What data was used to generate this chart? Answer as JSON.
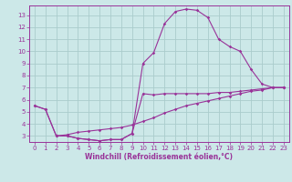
{
  "title": "",
  "xlabel": "Windchill (Refroidissement éolien,°C)",
  "ylabel": "",
  "bg_color": "#cce8e8",
  "grid_color": "#aacccc",
  "line_color": "#993399",
  "xlim": [
    -0.5,
    23.5
  ],
  "ylim": [
    2.5,
    13.8
  ],
  "yticks": [
    3,
    4,
    5,
    6,
    7,
    8,
    9,
    10,
    11,
    12,
    13
  ],
  "xticks": [
    0,
    1,
    2,
    3,
    4,
    5,
    6,
    7,
    8,
    9,
    10,
    11,
    12,
    13,
    14,
    15,
    16,
    17,
    18,
    19,
    20,
    21,
    22,
    23
  ],
  "line1_x": [
    0,
    1,
    2,
    3,
    4,
    5,
    6,
    7,
    8,
    9,
    10,
    11,
    12,
    13,
    14,
    15,
    16,
    17,
    18,
    19,
    20,
    21,
    22,
    23
  ],
  "line1_y": [
    5.5,
    5.2,
    3.0,
    3.0,
    2.8,
    2.7,
    2.6,
    2.7,
    2.7,
    3.2,
    6.5,
    6.4,
    6.5,
    6.5,
    6.5,
    6.5,
    6.5,
    6.6,
    6.6,
    6.7,
    6.8,
    6.9,
    7.0,
    7.0
  ],
  "line2_x": [
    0,
    1,
    2,
    3,
    4,
    5,
    6,
    7,
    8,
    9,
    10,
    11,
    12,
    13,
    14,
    15,
    16,
    17,
    18,
    19,
    20,
    21,
    22,
    23
  ],
  "line2_y": [
    5.5,
    5.2,
    3.0,
    3.0,
    2.8,
    2.7,
    2.6,
    2.7,
    2.7,
    3.2,
    9.0,
    9.9,
    12.3,
    13.3,
    13.5,
    13.4,
    12.8,
    11.0,
    10.4,
    10.0,
    8.5,
    7.3,
    7.0,
    7.0
  ],
  "line3_x": [
    2,
    3,
    4,
    5,
    6,
    7,
    8,
    9,
    10,
    11,
    12,
    13,
    14,
    15,
    16,
    17,
    18,
    19,
    20,
    21,
    22,
    23
  ],
  "line3_y": [
    3.0,
    3.1,
    3.3,
    3.4,
    3.5,
    3.6,
    3.7,
    3.9,
    4.2,
    4.5,
    4.9,
    5.2,
    5.5,
    5.7,
    5.9,
    6.1,
    6.3,
    6.5,
    6.7,
    6.8,
    7.0,
    7.0
  ],
  "tick_fontsize": 5.0,
  "xlabel_fontsize": 5.5,
  "marker_size": 1.8,
  "line_width": 0.8
}
